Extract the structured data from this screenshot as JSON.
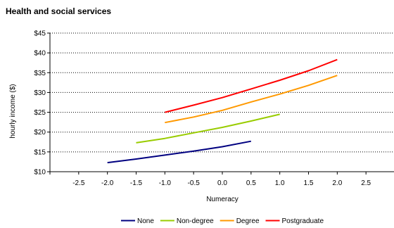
{
  "chart_data": {
    "type": "line",
    "title": "Health and social services",
    "xlabel": "Numeracy",
    "ylabel": "hourly income ($)",
    "xlim": [
      -3.0,
      3.0
    ],
    "ylim": [
      10,
      45
    ],
    "x_ticks": [
      "-2.5",
      "-2.0",
      "-1.5",
      "-1.0",
      "-0.5",
      "0.0",
      "0.5",
      "1.0",
      "1.5",
      "2.0",
      "2.5"
    ],
    "y_ticks": [
      "$10",
      "$15",
      "$20",
      "$25",
      "$30",
      "$35",
      "$40",
      "$45"
    ],
    "grid": "horizontal dotted",
    "legend_position": "bottom",
    "series": [
      {
        "name": "None",
        "color": "#000080",
        "x": [
          -2.0,
          -1.5,
          -1.0,
          -0.5,
          0.0,
          0.5
        ],
        "y": [
          12.3,
          13.2,
          14.2,
          15.2,
          16.3,
          17.7
        ]
      },
      {
        "name": "Non-degree",
        "color": "#99CC00",
        "x": [
          -1.5,
          -1.0,
          -0.5,
          0.0,
          0.5,
          1.0
        ],
        "y": [
          17.3,
          18.4,
          19.8,
          21.2,
          22.8,
          24.5
        ]
      },
      {
        "name": "Degree",
        "color": "#FF9900",
        "x": [
          -1.0,
          -0.5,
          0.0,
          0.5,
          1.0,
          1.5,
          2.0
        ],
        "y": [
          22.4,
          23.8,
          25.5,
          27.6,
          29.6,
          31.8,
          34.3
        ]
      },
      {
        "name": "Postgraduate",
        "color": "#FF0000",
        "x": [
          -1.0,
          -0.5,
          0.0,
          0.5,
          1.0,
          1.5,
          2.0
        ],
        "y": [
          25.0,
          26.8,
          28.7,
          30.9,
          33.1,
          35.5,
          38.3
        ]
      }
    ]
  }
}
